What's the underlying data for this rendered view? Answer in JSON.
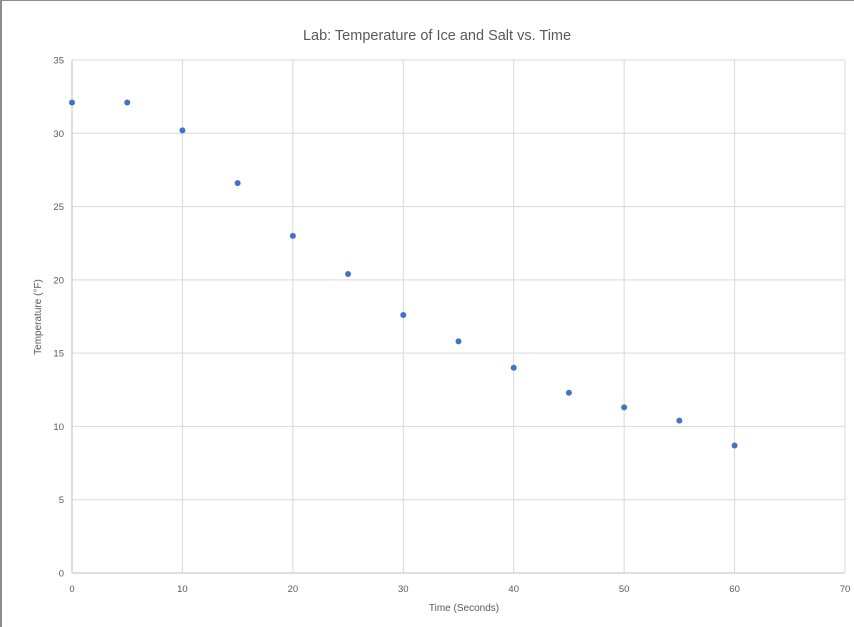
{
  "chart_data": {
    "type": "scatter",
    "title": "Lab: Temperature of Ice and Salt vs. Time",
    "xlabel": "Time (Seconds)",
    "ylabel": "Temperature (°F)",
    "xlim": [
      0,
      70
    ],
    "ylim": [
      0,
      35
    ],
    "x_ticks": [
      "0",
      "10",
      "20",
      "30",
      "40",
      "50",
      "60",
      "70"
    ],
    "y_ticks": [
      "0",
      "5",
      "10",
      "15",
      "20",
      "25",
      "30",
      "35"
    ],
    "grid": true,
    "legend": "none",
    "marker_color": "#4472c4",
    "series": [
      {
        "x": [
          0,
          5,
          10,
          15,
          20,
          25,
          30,
          35,
          40,
          45,
          50,
          55,
          60
        ],
        "y": [
          32.1,
          32.1,
          30.2,
          26.6,
          23.0,
          20.4,
          17.6,
          15.8,
          14.0,
          12.3,
          11.3,
          10.4,
          8.7
        ]
      }
    ]
  }
}
